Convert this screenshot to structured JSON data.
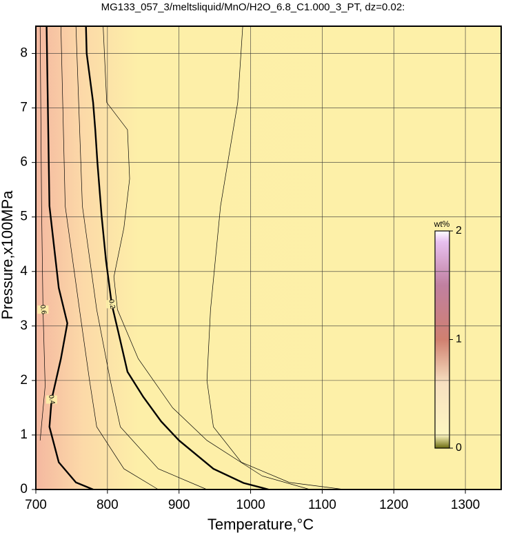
{
  "chart_data": {
    "type": "contour",
    "title": "MG133_057_3/meltsliquid/MnO/H2O_6.8_C1.000_3_PT, dz=0.02:",
    "x_label": "Temperature,°C",
    "y_label": "Pressure,x100MPa",
    "xlim": [
      700,
      1350
    ],
    "ylim": [
      0,
      8.5
    ],
    "xticks": [
      700,
      800,
      900,
      1000,
      1100,
      1200,
      1300
    ],
    "yticks": [
      0,
      1,
      2,
      3,
      4,
      5,
      6,
      7,
      8
    ],
    "grid": true,
    "colorbar": {
      "label": "wt%",
      "lim": [
        0,
        2
      ],
      "ticks": [
        0,
        1,
        2
      ]
    },
    "contours": [
      {
        "level": 0.2,
        "bold": true,
        "labeled": true,
        "x": [
          770,
          771,
          775,
          780,
          783,
          786,
          792,
          798,
          806,
          815,
          828,
          850,
          875,
          900,
          948,
          990,
          1025
        ],
        "y": [
          8.5,
          8.0,
          7.6,
          7.1,
          6.6,
          6.0,
          5.0,
          4.2,
          3.4,
          2.9,
          2.16,
          1.7,
          1.25,
          0.9,
          0.38,
          0.12,
          0
        ]
      },
      {
        "level": 0.4,
        "bold": true,
        "labeled": true,
        "x": [
          715,
          719,
          732,
          744,
          735,
          722,
          719,
          732,
          756,
          780
        ],
        "y": [
          8.5,
          5.2,
          3.7,
          3.05,
          2.4,
          1.65,
          1.15,
          0.5,
          0.13,
          0
        ]
      },
      {
        "level": 0.15,
        "bold": false,
        "labeled": false,
        "x": [
          794,
          799,
          828,
          831,
          823,
          809,
          814,
          843,
          891,
          939,
          1016,
          1083
        ],
        "y": [
          8.5,
          7.1,
          6.6,
          5.7,
          4.8,
          3.9,
          3.3,
          2.4,
          1.5,
          0.9,
          0.25,
          0
        ]
      },
      {
        "level": 0.1,
        "bold": false,
        "labeled": false,
        "x": [
          989,
          982,
          958,
          944,
          939,
          948,
          987,
          1054,
          1131
        ],
        "y": [
          8.5,
          7.1,
          5.2,
          3.3,
          2.0,
          1.15,
          0.5,
          0.13,
          0
        ]
      },
      {
        "level": 0.3,
        "bold": false,
        "labeled": false,
        "x": [
          735,
          741,
          761,
          775,
          785,
          823,
          871
        ],
        "y": [
          8.5,
          5.2,
          3.3,
          2.0,
          1.15,
          0.38,
          0
        ]
      },
      {
        "level": 0.25,
        "bold": false,
        "labeled": false,
        "x": [
          756,
          765,
          785,
          804,
          818,
          871,
          939
        ],
        "y": [
          8.5,
          5.2,
          3.3,
          2.0,
          1.15,
          0.38,
          0
        ]
      },
      {
        "level": 0.6,
        "bold": false,
        "labeled": true,
        "x": [
          706,
          708,
          710,
          713,
          706
        ],
        "y": [
          8.5,
          5.2,
          3.3,
          1.9,
          0.9
        ]
      }
    ]
  }
}
